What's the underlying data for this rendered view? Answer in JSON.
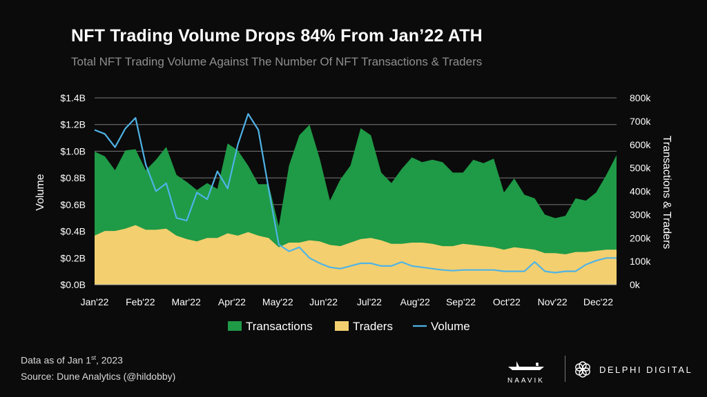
{
  "header": {
    "title": "NFT Trading Volume Drops 84% From Jan’22 ATH",
    "subtitle": "Total NFT Trading Volume Against The Number Of NFT Transactions & Traders"
  },
  "footer": {
    "data_as_of_prefix": "Data as of Jan 1",
    "data_as_of_sup": "st",
    "data_as_of_suffix": ", 2023",
    "source": "Source: Dune Analytics (@hildobby)",
    "brand_left": "NAAVIK",
    "brand_right": "DELPHI DIGITAL"
  },
  "icons": [
    "boat-logo-icon",
    "delphi-flower-logo-icon"
  ],
  "colors": {
    "transactions": "#1f9a47",
    "traders": "#f3cf6f",
    "volume": "#4fb3e6",
    "background": "#0b0b0b",
    "grid": "#7a7a7a"
  },
  "chart_data": {
    "type": "area",
    "title": "NFT Trading Volume Drops 84% From Jan’22 ATH",
    "ylabel_left": "Volume",
    "ylabel_right": "Transactions & Traders",
    "xlabel": "",
    "ylim_left": [
      0,
      1.4
    ],
    "ylim_right": [
      0,
      800000
    ],
    "left_ticks": [
      "$0.0B",
      "$0.2B",
      "$0.4B",
      "$0.6B",
      "$0.8B",
      "$1.0B",
      "$1.2B",
      "$1.4B"
    ],
    "right_ticks": [
      "0k",
      "100k",
      "200k",
      "300k",
      "400k",
      "500k",
      "600k",
      "700k",
      "800k"
    ],
    "month_labels": [
      "Jan'22",
      "Feb'22",
      "Mar'22",
      "Apr'22",
      "May'22",
      "Jun'22",
      "Jul'22",
      "Aug'22",
      "Sep'22",
      "Oct'22",
      "Nov'22",
      "Dec'22"
    ],
    "x_weeks": [
      0,
      1,
      2,
      3,
      4,
      5,
      6,
      7,
      8,
      9,
      10,
      11,
      12,
      13,
      14,
      15,
      16,
      17,
      18,
      19,
      20,
      21,
      22,
      23,
      24,
      25,
      26,
      27,
      28,
      29,
      30,
      31,
      32,
      33,
      34,
      35,
      36,
      37,
      38,
      39,
      40,
      41,
      42,
      43,
      44,
      45,
      46,
      47,
      48,
      49,
      50,
      51
    ],
    "legend": [
      "Transactions",
      "Traders",
      "Volume"
    ],
    "legend_position": "bottom",
    "grid": true,
    "series": [
      {
        "name": "Transactions",
        "axis": "right",
        "values": [
          570000,
          550000,
          490000,
          575000,
          580000,
          490000,
          535000,
          590000,
          470000,
          440000,
          405000,
          435000,
          410000,
          605000,
          575000,
          510000,
          430000,
          430000,
          250000,
          510000,
          640000,
          685000,
          540000,
          360000,
          450000,
          510000,
          670000,
          640000,
          480000,
          435000,
          495000,
          545000,
          525000,
          535000,
          525000,
          480000,
          480000,
          535000,
          520000,
          540000,
          395000,
          455000,
          385000,
          370000,
          300000,
          285000,
          295000,
          370000,
          360000,
          395000,
          470000,
          555000
        ]
      },
      {
        "name": "Traders",
        "axis": "right",
        "values": [
          210000,
          230000,
          230000,
          240000,
          255000,
          235000,
          235000,
          240000,
          210000,
          195000,
          185000,
          200000,
          200000,
          220000,
          210000,
          225000,
          210000,
          200000,
          160000,
          180000,
          180000,
          190000,
          185000,
          170000,
          165000,
          180000,
          195000,
          200000,
          190000,
          175000,
          175000,
          180000,
          180000,
          175000,
          165000,
          165000,
          175000,
          170000,
          165000,
          160000,
          150000,
          160000,
          155000,
          150000,
          135000,
          135000,
          130000,
          140000,
          140000,
          145000,
          150000,
          150000
        ]
      },
      {
        "name": "Volume",
        "axis": "left",
        "values": [
          1.16,
          1.13,
          1.03,
          1.17,
          1.25,
          0.9,
          0.7,
          0.76,
          0.5,
          0.48,
          0.69,
          0.64,
          0.85,
          0.72,
          1.05,
          1.28,
          1.16,
          0.72,
          0.3,
          0.25,
          0.28,
          0.2,
          0.16,
          0.13,
          0.12,
          0.14,
          0.16,
          0.16,
          0.14,
          0.14,
          0.17,
          0.14,
          0.13,
          0.12,
          0.11,
          0.105,
          0.11,
          0.11,
          0.11,
          0.11,
          0.1,
          0.1,
          0.1,
          0.17,
          0.1,
          0.09,
          0.1,
          0.1,
          0.15,
          0.18,
          0.2,
          0.2
        ]
      }
    ]
  }
}
